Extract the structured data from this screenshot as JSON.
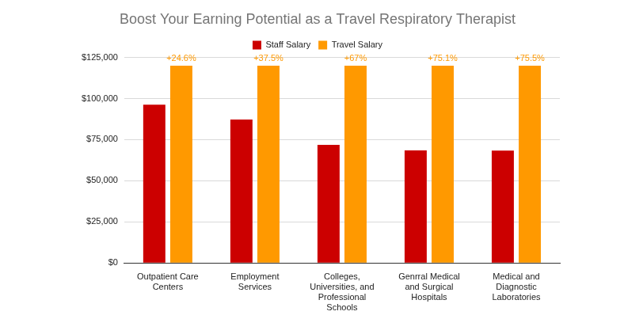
{
  "chart_data": {
    "type": "bar",
    "title": "Boost Your Earning Potential as a Travel Respiratory Therapist",
    "categories": [
      "Outpatient Care Centers",
      "Employment Services",
      "Colleges, Universities, and Professional Schools",
      "Genrral Medical and Surgical Hospitals",
      "Medical and Diagnostic Laboratories"
    ],
    "series": [
      {
        "name": "Staff Salary",
        "color": "#cc0000",
        "values": [
          96300,
          87300,
          71900,
          68500,
          68400
        ]
      },
      {
        "name": "Travel Salary",
        "color": "#ff9900",
        "values": [
          120000,
          120000,
          120000,
          120000,
          120000
        ],
        "annotations": [
          "+24.6%",
          "+37.5%",
          "+67%",
          "+75.1%",
          "+75.5%"
        ]
      }
    ],
    "ylim": [
      0,
      125000
    ],
    "yticks": [
      {
        "value": 0,
        "label": "$0"
      },
      {
        "value": 25000,
        "label": "$25,000"
      },
      {
        "value": 50000,
        "label": "$50,000"
      },
      {
        "value": 75000,
        "label": "$75,000"
      },
      {
        "value": 100000,
        "label": "$100,000"
      },
      {
        "value": 125000,
        "label": "$125,000"
      }
    ],
    "grid": true,
    "legend": "top"
  }
}
